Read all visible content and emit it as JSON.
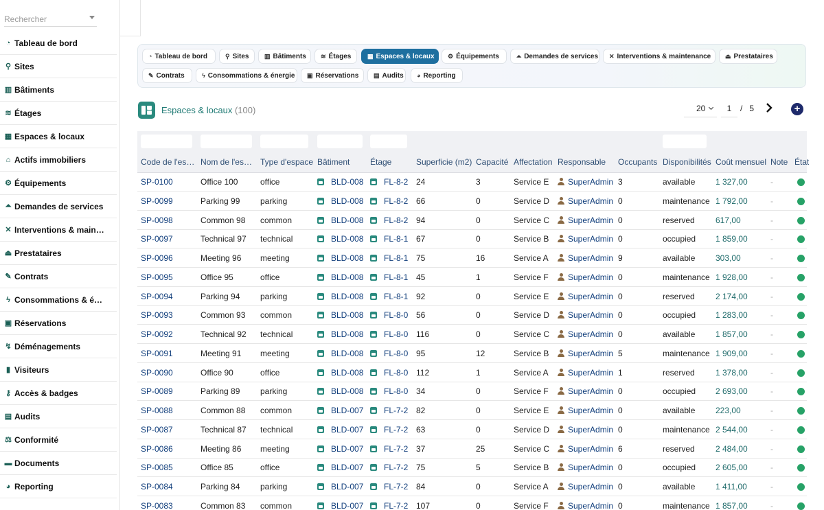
{
  "search": {
    "placeholder": "Rechercher"
  },
  "sidebar": {
    "items": [
      {
        "label": "Tableau de bord",
        "icon": "dashboard-icon"
      },
      {
        "label": "Sites",
        "icon": "map-pin-icon"
      },
      {
        "label": "Bâtiments",
        "icon": "building-icon"
      },
      {
        "label": "Étages",
        "icon": "layers-icon"
      },
      {
        "label": "Espaces & locaux",
        "icon": "grid-icon"
      },
      {
        "label": "Actifs immobiliers",
        "icon": "bank-icon"
      },
      {
        "label": "Équipements",
        "icon": "cogs-icon"
      },
      {
        "label": "Demandes de services",
        "icon": "bell-icon"
      },
      {
        "label": "Interventions & main…",
        "icon": "tools-icon"
      },
      {
        "label": "Prestataires",
        "icon": "handshake-icon"
      },
      {
        "label": "Contrats",
        "icon": "contract-icon"
      },
      {
        "label": "Consommations & é…",
        "icon": "bolt-icon"
      },
      {
        "label": "Réservations",
        "icon": "calendar-check-icon"
      },
      {
        "label": "Déménagements",
        "icon": "dolly-icon"
      },
      {
        "label": "Visiteurs",
        "icon": "id-card-icon"
      },
      {
        "label": "Accès & badges",
        "icon": "key-icon"
      },
      {
        "label": "Audits",
        "icon": "clipboard-check-icon"
      },
      {
        "label": "Conformité",
        "icon": "balance-icon"
      },
      {
        "label": "Documents",
        "icon": "folder-icon"
      },
      {
        "label": "Reporting",
        "icon": "chart-pie-icon"
      }
    ]
  },
  "tabs": [
    {
      "label": "Tableau de bord",
      "icon": "dashboard-icon",
      "active": false
    },
    {
      "label": "Sites",
      "icon": "map-pin-icon",
      "active": false
    },
    {
      "label": "Bâtiments",
      "icon": "building-icon",
      "active": false
    },
    {
      "label": "Étages",
      "icon": "layers-icon",
      "active": false
    },
    {
      "label": "Espaces & locaux",
      "icon": "grid-icon",
      "active": true
    },
    {
      "label": "Équipements",
      "icon": "cogs-icon",
      "active": false
    },
    {
      "label": "Demandes de services",
      "icon": "bell-icon",
      "active": false
    },
    {
      "label": "Interventions & maintenance",
      "icon": "tools-icon",
      "active": false
    },
    {
      "label": "Prestataires",
      "icon": "handshake-icon",
      "active": false
    },
    {
      "label": "Contrats",
      "icon": "contract-icon",
      "active": false
    },
    {
      "label": "Consommations & énergie",
      "icon": "bolt-icon",
      "active": false
    },
    {
      "label": "Réservations",
      "icon": "calendar-check-icon",
      "active": false
    },
    {
      "label": "Audits",
      "icon": "clipboard-check-icon",
      "active": false
    },
    {
      "label": "Reporting",
      "icon": "chart-pie-icon",
      "active": false
    }
  ],
  "header": {
    "title": "Espaces & locaux",
    "count": "(100)"
  },
  "pager": {
    "page_size": "20",
    "page": "1",
    "separator": "/",
    "total_pages": "5",
    "add_label": "+"
  },
  "table": {
    "columns": [
      "Code de l'es…",
      "Nom de l'es…",
      "Type d'espace",
      "Bâtiment",
      "Étage",
      "Superficie (m2)",
      "Capacité",
      "Affectation",
      "Responsable",
      "Occupants",
      "Disponibilités",
      "Coût mensuel",
      "Note",
      "État"
    ],
    "rows": [
      [
        "SP-0100",
        "Office 100",
        "office",
        "BLD-008",
        "FL-8-2",
        "24",
        "3",
        "Service E",
        "SuperAdmin",
        "3",
        "available",
        "1 327,00",
        "-"
      ],
      [
        "SP-0099",
        "Parking 99",
        "parking",
        "BLD-008",
        "FL-8-2",
        "66",
        "0",
        "Service D",
        "SuperAdmin",
        "0",
        "maintenance",
        "1 792,00",
        "-"
      ],
      [
        "SP-0098",
        "Common 98",
        "common",
        "BLD-008",
        "FL-8-2",
        "94",
        "0",
        "Service C",
        "SuperAdmin",
        "0",
        "reserved",
        "617,00",
        "-"
      ],
      [
        "SP-0097",
        "Technical 97",
        "technical",
        "BLD-008",
        "FL-8-1",
        "67",
        "0",
        "Service B",
        "SuperAdmin",
        "0",
        "occupied",
        "1 859,00",
        "-"
      ],
      [
        "SP-0096",
        "Meeting 96",
        "meeting",
        "BLD-008",
        "FL-8-1",
        "75",
        "16",
        "Service A",
        "SuperAdmin",
        "9",
        "available",
        "303,00",
        "-"
      ],
      [
        "SP-0095",
        "Office 95",
        "office",
        "BLD-008",
        "FL-8-1",
        "45",
        "1",
        "Service F",
        "SuperAdmin",
        "0",
        "maintenance",
        "1 928,00",
        "-"
      ],
      [
        "SP-0094",
        "Parking 94",
        "parking",
        "BLD-008",
        "FL-8-1",
        "92",
        "0",
        "Service E",
        "SuperAdmin",
        "0",
        "reserved",
        "2 174,00",
        "-"
      ],
      [
        "SP-0093",
        "Common 93",
        "common",
        "BLD-008",
        "FL-8-0",
        "56",
        "0",
        "Service D",
        "SuperAdmin",
        "0",
        "occupied",
        "1 283,00",
        "-"
      ],
      [
        "SP-0092",
        "Technical 92",
        "technical",
        "BLD-008",
        "FL-8-0",
        "116",
        "0",
        "Service C",
        "SuperAdmin",
        "0",
        "available",
        "1 857,00",
        "-"
      ],
      [
        "SP-0091",
        "Meeting 91",
        "meeting",
        "BLD-008",
        "FL-8-0",
        "95",
        "12",
        "Service B",
        "SuperAdmin",
        "5",
        "maintenance",
        "1 909,00",
        "-"
      ],
      [
        "SP-0090",
        "Office 90",
        "office",
        "BLD-008",
        "FL-8-0",
        "112",
        "1",
        "Service A",
        "SuperAdmin",
        "1",
        "reserved",
        "1 378,00",
        "-"
      ],
      [
        "SP-0089",
        "Parking 89",
        "parking",
        "BLD-008",
        "FL-8-0",
        "34",
        "0",
        "Service F",
        "SuperAdmin",
        "0",
        "occupied",
        "2 693,00",
        "-"
      ],
      [
        "SP-0088",
        "Common 88",
        "common",
        "BLD-007",
        "FL-7-2",
        "82",
        "0",
        "Service E",
        "SuperAdmin",
        "0",
        "available",
        "223,00",
        "-"
      ],
      [
        "SP-0087",
        "Technical 87",
        "technical",
        "BLD-007",
        "FL-7-2",
        "63",
        "0",
        "Service D",
        "SuperAdmin",
        "0",
        "maintenance",
        "2 544,00",
        "-"
      ],
      [
        "SP-0086",
        "Meeting 86",
        "meeting",
        "BLD-007",
        "FL-7-2",
        "37",
        "25",
        "Service C",
        "SuperAdmin",
        "6",
        "reserved",
        "2 484,00",
        "-"
      ],
      [
        "SP-0085",
        "Office 85",
        "office",
        "BLD-007",
        "FL-7-2",
        "75",
        "5",
        "Service B",
        "SuperAdmin",
        "0",
        "occupied",
        "2 605,00",
        "-"
      ],
      [
        "SP-0084",
        "Parking 84",
        "parking",
        "BLD-007",
        "FL-7-2",
        "84",
        "0",
        "Service A",
        "SuperAdmin",
        "0",
        "available",
        "1 411,00",
        "-"
      ],
      [
        "SP-0083",
        "Common 83",
        "common",
        "BLD-007",
        "FL-7-2",
        "107",
        "0",
        "Service F",
        "SuperAdmin",
        "0",
        "maintenance",
        "1 857,00",
        "-"
      ]
    ],
    "status_color": "#27a267"
  }
}
